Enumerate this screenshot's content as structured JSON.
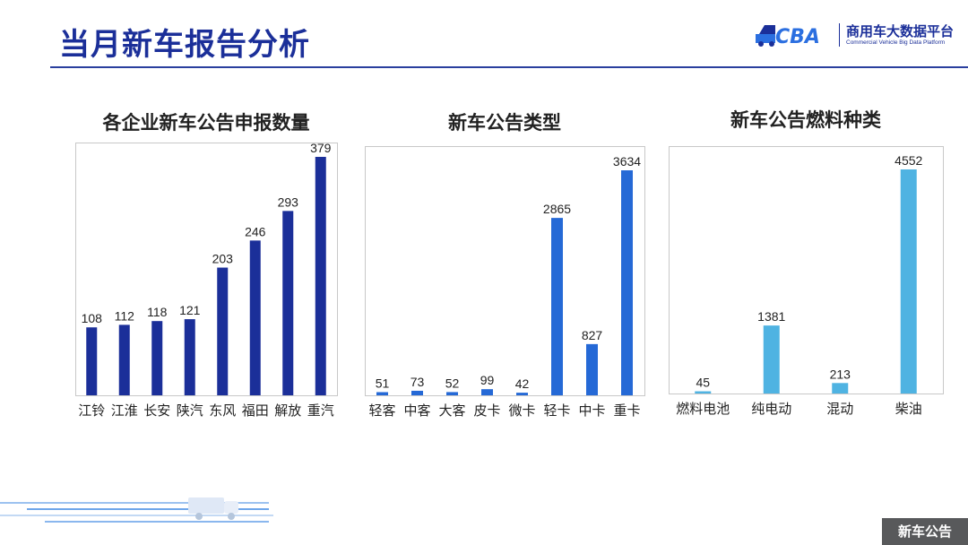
{
  "page": {
    "title": "当月新车报告分析",
    "badge": "新车公告"
  },
  "brand": {
    "logo_text": "CBA",
    "name_cn": "商用车大数据平台",
    "name_en": "Commercial Vehicle Big Data Platform"
  },
  "chart_data": [
    {
      "type": "bar",
      "title": "各企业新车公告申报数量",
      "categories": [
        "江铃",
        "江淮",
        "长安",
        "陕汽",
        "东风",
        "福田",
        "解放",
        "重汽"
      ],
      "values": [
        108,
        112,
        118,
        121,
        203,
        246,
        293,
        379
      ],
      "ylim": [
        0,
        379
      ],
      "color": "#1b2f99",
      "xlabel": "",
      "ylabel": "",
      "grid": false,
      "legend": "none"
    },
    {
      "type": "bar",
      "title": "新车公告类型",
      "categories": [
        "轻客",
        "中客",
        "大客",
        "皮卡",
        "微卡",
        "轻卡",
        "中卡",
        "重卡"
      ],
      "values": [
        51,
        73,
        52,
        99,
        42,
        2865,
        827,
        3634
      ],
      "ylim": [
        0,
        3634
      ],
      "color": "#2569d6",
      "xlabel": "",
      "ylabel": "",
      "grid": false,
      "legend": "none"
    },
    {
      "type": "bar",
      "title": "新车公告燃料种类",
      "categories": [
        "燃料电池",
        "纯电动",
        "混动",
        "柴油"
      ],
      "values": [
        45,
        1381,
        213,
        4552
      ],
      "ylim": [
        0,
        4552
      ],
      "color": "#4fb3e2",
      "xlabel": "",
      "ylabel": "",
      "grid": false,
      "legend": "none"
    }
  ]
}
